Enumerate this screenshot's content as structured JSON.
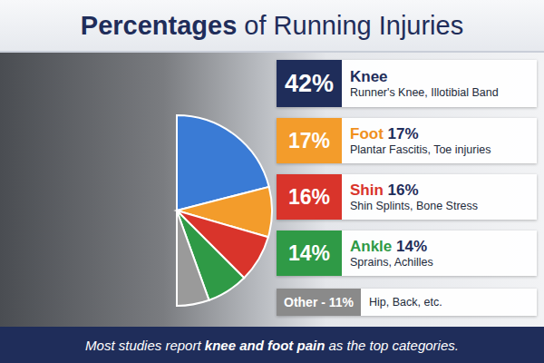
{
  "chart_data": {
    "type": "pie",
    "title": "Percentages of Running Injuries",
    "categories": [
      "Knee",
      "Foot",
      "Shin",
      "Ankle",
      "Other"
    ],
    "values": [
      42,
      17,
      16,
      14,
      11
    ],
    "colors": [
      "#3a7bd5",
      "#f39c2b",
      "#d9342b",
      "#2f9a46",
      "#9a9a9a"
    ],
    "annotations": [
      {
        "badge": "42%",
        "heading": "Knee",
        "detail": "Runner's Knee, Illotibial Band"
      },
      {
        "badge": "17%",
        "heading": "Foot 17%",
        "detail": "Plantar Fascitis, Toe injuries"
      },
      {
        "badge": "16%",
        "heading": "Shin 16%",
        "detail": "Shin Splints, Bone Stress"
      },
      {
        "badge": "14%",
        "heading": "Ankle 14%",
        "detail": "Sprains, Achilles"
      },
      {
        "badge": "Other - 11%",
        "detail": "Hip, Back, etc."
      }
    ],
    "footnote": {
      "text": "Most studies report knee and foot pain as the top categories.",
      "emphasis": "knee and foot pain"
    }
  }
}
